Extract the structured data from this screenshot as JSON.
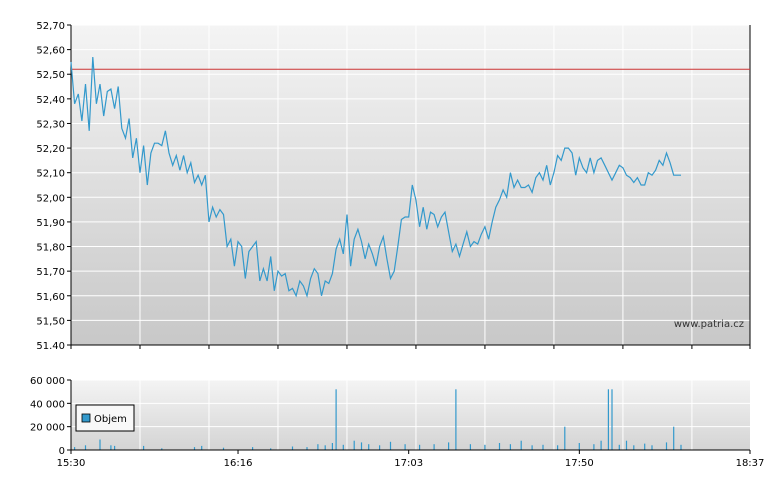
{
  "watermark": "www.patria.cz",
  "colors": {
    "price_line": "#3399cc",
    "reference_line": "#cc3333",
    "volume_bar": "#3399cc",
    "grid": "#ffffff",
    "axis": "#000000",
    "bg_top": "#f4f4f4",
    "bg_bottom": "#c8c8c8"
  },
  "chart_data": [
    {
      "type": "line",
      "name": "price",
      "ylim": [
        51.4,
        52.7
      ],
      "y_ticks": [
        "52,70",
        "52,60",
        "52,50",
        "52,40",
        "52,30",
        "52,20",
        "52,10",
        "52,00",
        "51,90",
        "51,80",
        "51,70",
        "51,60",
        "51,50",
        "51.40"
      ],
      "x_range": [
        "15:30",
        "18:37"
      ],
      "reference_line": 52.52,
      "grid": true,
      "points": [
        [
          "15:30",
          52.55
        ],
        [
          "15:31",
          52.38
        ],
        [
          "15:32",
          52.42
        ],
        [
          "15:33",
          52.31
        ],
        [
          "15:34",
          52.46
        ],
        [
          "15:35",
          52.27
        ],
        [
          "15:36",
          52.57
        ],
        [
          "15:37",
          52.38
        ],
        [
          "15:38",
          52.46
        ],
        [
          "15:39",
          52.33
        ],
        [
          "15:40",
          52.43
        ],
        [
          "15:41",
          52.44
        ],
        [
          "15:42",
          52.36
        ],
        [
          "15:43",
          52.45
        ],
        [
          "15:44",
          52.28
        ],
        [
          "15:45",
          52.24
        ],
        [
          "15:46",
          52.32
        ],
        [
          "15:47",
          52.16
        ],
        [
          "15:48",
          52.24
        ],
        [
          "15:49",
          52.1
        ],
        [
          "15:50",
          52.21
        ],
        [
          "15:51",
          52.05
        ],
        [
          "15:52",
          52.18
        ],
        [
          "15:53",
          52.22
        ],
        [
          "15:54",
          52.22
        ],
        [
          "15:55",
          52.21
        ],
        [
          "15:56",
          52.27
        ],
        [
          "15:57",
          52.18
        ],
        [
          "15:58",
          52.13
        ],
        [
          "15:59",
          52.17
        ],
        [
          "16:00",
          52.11
        ],
        [
          "16:01",
          52.17
        ],
        [
          "16:02",
          52.1
        ],
        [
          "16:03",
          52.14
        ],
        [
          "16:04",
          52.06
        ],
        [
          "16:05",
          52.09
        ],
        [
          "16:06",
          52.05
        ],
        [
          "16:07",
          52.09
        ],
        [
          "16:08",
          51.9
        ],
        [
          "16:09",
          51.96
        ],
        [
          "16:10",
          51.92
        ],
        [
          "16:11",
          51.95
        ],
        [
          "16:12",
          51.93
        ],
        [
          "16:13",
          51.8
        ],
        [
          "16:14",
          51.83
        ],
        [
          "16:15",
          51.72
        ],
        [
          "16:16",
          51.82
        ],
        [
          "16:17",
          51.8
        ],
        [
          "16:18",
          51.67
        ],
        [
          "16:19",
          51.78
        ],
        [
          "16:20",
          51.8
        ],
        [
          "16:21",
          51.82
        ],
        [
          "16:22",
          51.66
        ],
        [
          "16:23",
          51.71
        ],
        [
          "16:24",
          51.66
        ],
        [
          "16:25",
          51.76
        ],
        [
          "16:26",
          51.62
        ],
        [
          "16:27",
          51.7
        ],
        [
          "16:28",
          51.68
        ],
        [
          "16:29",
          51.69
        ],
        [
          "16:30",
          51.62
        ],
        [
          "16:31",
          51.63
        ],
        [
          "16:32",
          51.6
        ],
        [
          "16:33",
          51.66
        ],
        [
          "16:34",
          51.64
        ],
        [
          "16:35",
          51.6
        ],
        [
          "16:36",
          51.67
        ],
        [
          "16:37",
          51.71
        ],
        [
          "16:38",
          51.69
        ],
        [
          "16:39",
          51.6
        ],
        [
          "16:40",
          51.66
        ],
        [
          "16:41",
          51.65
        ],
        [
          "16:42",
          51.69
        ],
        [
          "16:43",
          51.79
        ],
        [
          "16:44",
          51.83
        ],
        [
          "16:45",
          51.77
        ],
        [
          "16:46",
          51.93
        ],
        [
          "16:47",
          51.72
        ],
        [
          "16:48",
          51.83
        ],
        [
          "16:49",
          51.87
        ],
        [
          "16:50",
          51.82
        ],
        [
          "16:51",
          51.75
        ],
        [
          "16:52",
          51.81
        ],
        [
          "16:53",
          51.77
        ],
        [
          "16:54",
          51.72
        ],
        [
          "16:55",
          51.8
        ],
        [
          "16:56",
          51.84
        ],
        [
          "16:57",
          51.75
        ],
        [
          "16:58",
          51.67
        ],
        [
          "16:59",
          51.7
        ],
        [
          "17:00",
          51.8
        ],
        [
          "17:01",
          51.91
        ],
        [
          "17:02",
          51.92
        ],
        [
          "17:03",
          51.92
        ],
        [
          "17:04",
          52.05
        ],
        [
          "17:05",
          51.99
        ],
        [
          "17:06",
          51.88
        ],
        [
          "17:07",
          51.96
        ],
        [
          "17:08",
          51.87
        ],
        [
          "17:09",
          51.94
        ],
        [
          "17:10",
          51.93
        ],
        [
          "17:11",
          51.88
        ],
        [
          "17:12",
          51.92
        ],
        [
          "17:13",
          51.94
        ],
        [
          "17:14",
          51.86
        ],
        [
          "17:15",
          51.78
        ],
        [
          "17:16",
          51.81
        ],
        [
          "17:17",
          51.76
        ],
        [
          "17:18",
          51.81
        ],
        [
          "17:19",
          51.86
        ],
        [
          "17:20",
          51.8
        ],
        [
          "17:21",
          51.82
        ],
        [
          "17:22",
          51.81
        ],
        [
          "17:23",
          51.85
        ],
        [
          "17:24",
          51.88
        ],
        [
          "17:25",
          51.83
        ],
        [
          "17:26",
          51.9
        ],
        [
          "17:27",
          51.96
        ],
        [
          "17:28",
          51.99
        ],
        [
          "17:29",
          52.03
        ],
        [
          "17:30",
          52.0
        ],
        [
          "17:31",
          52.1
        ],
        [
          "17:32",
          52.04
        ],
        [
          "17:33",
          52.07
        ],
        [
          "17:34",
          52.04
        ],
        [
          "17:35",
          52.04
        ],
        [
          "17:36",
          52.05
        ],
        [
          "17:37",
          52.02
        ],
        [
          "17:38",
          52.08
        ],
        [
          "17:39",
          52.1
        ],
        [
          "17:40",
          52.07
        ],
        [
          "17:41",
          52.13
        ],
        [
          "17:42",
          52.05
        ],
        [
          "17:43",
          52.1
        ],
        [
          "17:44",
          52.17
        ],
        [
          "17:45",
          52.15
        ],
        [
          "17:46",
          52.2
        ],
        [
          "17:47",
          52.2
        ],
        [
          "17:48",
          52.18
        ],
        [
          "17:49",
          52.09
        ],
        [
          "17:50",
          52.16
        ],
        [
          "17:51",
          52.12
        ],
        [
          "17:52",
          52.1
        ],
        [
          "17:53",
          52.16
        ],
        [
          "17:54",
          52.1
        ],
        [
          "17:55",
          52.15
        ],
        [
          "17:56",
          52.16
        ],
        [
          "17:57",
          52.13
        ],
        [
          "17:58",
          52.1
        ],
        [
          "17:59",
          52.07
        ],
        [
          "18:00",
          52.1
        ],
        [
          "18:01",
          52.13
        ],
        [
          "18:02",
          52.12
        ],
        [
          "18:03",
          52.09
        ],
        [
          "18:04",
          52.08
        ],
        [
          "18:05",
          52.06
        ],
        [
          "18:06",
          52.08
        ],
        [
          "18:07",
          52.05
        ],
        [
          "18:08",
          52.05
        ],
        [
          "18:09",
          52.1
        ],
        [
          "18:10",
          52.09
        ],
        [
          "18:11",
          52.11
        ],
        [
          "18:12",
          52.15
        ],
        [
          "18:13",
          52.13
        ],
        [
          "18:14",
          52.18
        ],
        [
          "18:15",
          52.14
        ],
        [
          "18:16",
          52.09
        ],
        [
          "18:17",
          52.09
        ],
        [
          "18:18",
          52.09
        ]
      ]
    },
    {
      "type": "bar",
      "name": "volume",
      "legend": [
        "Objem"
      ],
      "legend_position": "bottom-left",
      "ylim": [
        0,
        60000
      ],
      "y_ticks": [
        "60 000",
        "40 000",
        "20 000",
        "0"
      ],
      "x_ticks": [
        "15:30",
        "16:16",
        "17:03",
        "17:50",
        "18:37"
      ],
      "grid": true,
      "bars": [
        [
          "15:31",
          2500
        ],
        [
          "15:34",
          4000
        ],
        [
          "15:38",
          9000
        ],
        [
          "15:41",
          4000
        ],
        [
          "15:42",
          3500
        ],
        [
          "15:50",
          3500
        ],
        [
          "15:55",
          1500
        ],
        [
          "16:04",
          2500
        ],
        [
          "16:06",
          3500
        ],
        [
          "16:12",
          2000
        ],
        [
          "16:20",
          2500
        ],
        [
          "16:25",
          1500
        ],
        [
          "16:31",
          3000
        ],
        [
          "16:35",
          2500
        ],
        [
          "16:38",
          5000
        ],
        [
          "16:40",
          4000
        ],
        [
          "16:42",
          6000
        ],
        [
          "16:43",
          52000
        ],
        [
          "16:45",
          4500
        ],
        [
          "16:48",
          8000
        ],
        [
          "16:50",
          6500
        ],
        [
          "16:52",
          5000
        ],
        [
          "16:55",
          4000
        ],
        [
          "16:58",
          7000
        ],
        [
          "17:02",
          5000
        ],
        [
          "17:06",
          4500
        ],
        [
          "17:10",
          5000
        ],
        [
          "17:14",
          6500
        ],
        [
          "17:16",
          52000
        ],
        [
          "17:20",
          5000
        ],
        [
          "17:24",
          4500
        ],
        [
          "17:28",
          6000
        ],
        [
          "17:31",
          5000
        ],
        [
          "17:34",
          8000
        ],
        [
          "17:37",
          4000
        ],
        [
          "17:40",
          4500
        ],
        [
          "17:44",
          4000
        ],
        [
          "17:46",
          20000
        ],
        [
          "17:50",
          6000
        ],
        [
          "17:54",
          5000
        ],
        [
          "17:56",
          8000
        ],
        [
          "17:58",
          52000
        ],
        [
          "17:59",
          52000
        ],
        [
          "18:01",
          4500
        ],
        [
          "18:03",
          8000
        ],
        [
          "18:05",
          4000
        ],
        [
          "18:08",
          5500
        ],
        [
          "18:10",
          4000
        ],
        [
          "18:14",
          6500
        ],
        [
          "18:16",
          20000
        ],
        [
          "18:18",
          4500
        ]
      ]
    }
  ]
}
